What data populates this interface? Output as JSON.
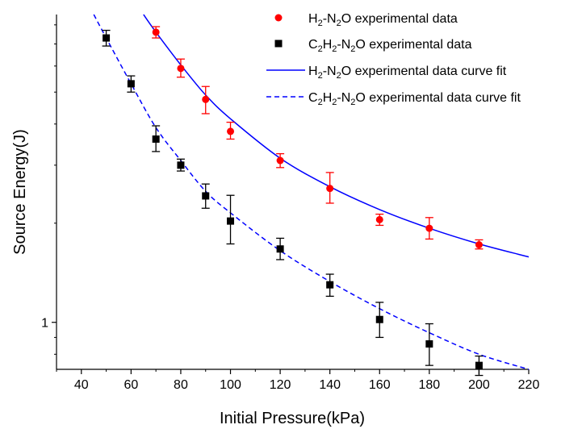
{
  "chart_data": {
    "type": "scatter",
    "xlabel": "Initial Pressure(kPa)",
    "ylabel": "Source Energy(J)",
    "xlim": [
      30,
      220
    ],
    "ylim": [
      0.72,
      8.6
    ],
    "yscale": "log",
    "x_ticks": [
      {
        "value": 40,
        "label": "40"
      },
      {
        "value": 60,
        "label": "60"
      },
      {
        "value": 80,
        "label": "80"
      },
      {
        "value": 100,
        "label": "100"
      },
      {
        "value": 120,
        "label": "120"
      },
      {
        "value": 140,
        "label": "140"
      },
      {
        "value": 160,
        "label": "160"
      },
      {
        "value": 180,
        "label": "180"
      },
      {
        "value": 200,
        "label": "200"
      },
      {
        "value": 220,
        "label": "220"
      }
    ],
    "y_ticks": [
      {
        "value": 1,
        "label": "1"
      }
    ],
    "legend": {
      "placement": "top-right",
      "entries": [
        {
          "sub": [
            "H",
            "2",
            "-N",
            "2",
            "O experimental data"
          ],
          "marker": "circle",
          "color": "#ff0000"
        },
        {
          "sub": [
            "C",
            "2",
            "H",
            "2",
            "-N",
            "2",
            "O experimental data"
          ],
          "marker": "square",
          "color": "#000000"
        },
        {
          "sub": [
            "H",
            "2",
            "-N",
            "2",
            "O experimental data curve fit"
          ],
          "marker": "solid-line",
          "color": "#0000ff"
        },
        {
          "sub": [
            "C",
            "2",
            "H",
            "2",
            "-N",
            "2",
            "O experimental data curve fit"
          ],
          "marker": "dashed-line",
          "color": "#0000ff"
        }
      ]
    },
    "series": [
      {
        "name": "H2-N2O experimental data",
        "marker": "circle",
        "color": "#ff0000",
        "points": [
          {
            "x": 70,
            "y": 7.6,
            "err_low": 7.3,
            "err_high": 7.9
          },
          {
            "x": 80,
            "y": 5.9,
            "err_low": 5.55,
            "err_high": 6.3
          },
          {
            "x": 90,
            "y": 4.75,
            "err_low": 4.3,
            "err_high": 5.2
          },
          {
            "x": 100,
            "y": 3.8,
            "err_low": 3.6,
            "err_high": 4.05
          },
          {
            "x": 120,
            "y": 3.1,
            "err_low": 2.95,
            "err_high": 3.25
          },
          {
            "x": 140,
            "y": 2.55,
            "err_low": 2.3,
            "err_high": 2.85
          },
          {
            "x": 160,
            "y": 2.05,
            "err_low": 1.97,
            "err_high": 2.13
          },
          {
            "x": 180,
            "y": 1.93,
            "err_low": 1.79,
            "err_high": 2.08
          },
          {
            "x": 200,
            "y": 1.72,
            "err_low": 1.67,
            "err_high": 1.78
          }
        ]
      },
      {
        "name": "C2H2-N2O experimental data",
        "marker": "square",
        "color": "#000000",
        "points": [
          {
            "x": 50,
            "y": 7.3,
            "err_low": 6.9,
            "err_high": 7.7
          },
          {
            "x": 60,
            "y": 5.3,
            "err_low": 5.0,
            "err_high": 5.6
          },
          {
            "x": 70,
            "y": 3.6,
            "err_low": 3.3,
            "err_high": 3.95
          },
          {
            "x": 80,
            "y": 3.0,
            "err_low": 2.88,
            "err_high": 3.13
          },
          {
            "x": 90,
            "y": 2.42,
            "err_low": 2.22,
            "err_high": 2.63
          },
          {
            "x": 100,
            "y": 2.03,
            "err_low": 1.73,
            "err_high": 2.43
          },
          {
            "x": 120,
            "y": 1.67,
            "err_low": 1.55,
            "err_high": 1.8
          },
          {
            "x": 140,
            "y": 1.3,
            "err_low": 1.2,
            "err_high": 1.4
          },
          {
            "x": 160,
            "y": 1.02,
            "err_low": 0.9,
            "err_high": 1.15
          },
          {
            "x": 180,
            "y": 0.86,
            "err_low": 0.74,
            "err_high": 0.99
          },
          {
            "x": 200,
            "y": 0.74,
            "err_low": 0.69,
            "err_high": 0.79
          }
        ]
      },
      {
        "name": "H2-N2O experimental data curve fit",
        "line": "solid",
        "color": "#0000ff",
        "points": [
          {
            "x": 65,
            "y": 8.6
          },
          {
            "x": 70,
            "y": 7.6
          },
          {
            "x": 80,
            "y": 6.05
          },
          {
            "x": 90,
            "y": 4.9
          },
          {
            "x": 100,
            "y": 4.15
          },
          {
            "x": 120,
            "y": 3.15
          },
          {
            "x": 140,
            "y": 2.58
          },
          {
            "x": 160,
            "y": 2.2
          },
          {
            "x": 180,
            "y": 1.93
          },
          {
            "x": 200,
            "y": 1.73
          },
          {
            "x": 220,
            "y": 1.58
          }
        ]
      },
      {
        "name": "C2H2-N2O experimental data curve fit",
        "line": "dashed",
        "color": "#0000ff",
        "points": [
          {
            "x": 45,
            "y": 8.6
          },
          {
            "x": 50,
            "y": 7.3
          },
          {
            "x": 60,
            "y": 5.3
          },
          {
            "x": 70,
            "y": 3.9
          },
          {
            "x": 80,
            "y": 3.1
          },
          {
            "x": 90,
            "y": 2.5
          },
          {
            "x": 100,
            "y": 2.15
          },
          {
            "x": 120,
            "y": 1.65
          },
          {
            "x": 140,
            "y": 1.33
          },
          {
            "x": 160,
            "y": 1.1
          },
          {
            "x": 180,
            "y": 0.93
          },
          {
            "x": 200,
            "y": 0.8
          },
          {
            "x": 220,
            "y": 0.72
          }
        ]
      }
    ]
  }
}
